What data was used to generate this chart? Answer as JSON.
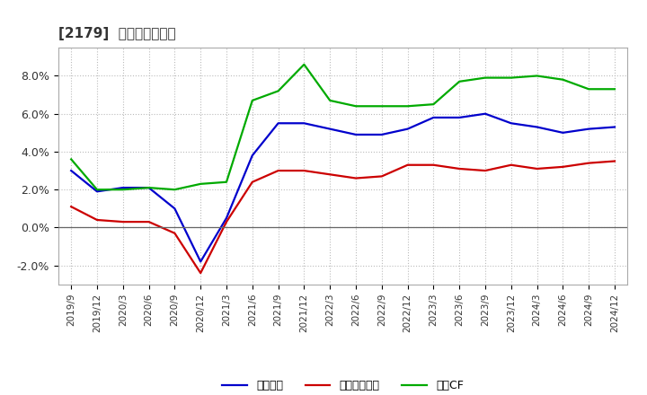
{
  "title": "[2179]  マージンの推移",
  "ylim": [
    -0.03,
    0.095
  ],
  "yticks": [
    -0.02,
    0.0,
    0.02,
    0.04,
    0.06,
    0.08
  ],
  "ytick_labels": [
    "-2.0%",
    "0.0%",
    "2.0%",
    "4.0%",
    "6.0%",
    "8.0%"
  ],
  "x_labels": [
    "2019/9",
    "2019/12",
    "2020/3",
    "2020/6",
    "2020/9",
    "2020/12",
    "2021/3",
    "2021/6",
    "2021/9",
    "2021/12",
    "2022/3",
    "2022/6",
    "2022/9",
    "2022/12",
    "2023/3",
    "2023/6",
    "2023/9",
    "2023/12",
    "2024/3",
    "2024/6",
    "2024/9",
    "2024/12"
  ],
  "keiri_y": [
    0.03,
    0.019,
    0.021,
    0.021,
    0.01,
    -0.018,
    0.005,
    0.038,
    0.055,
    0.055,
    0.052,
    0.049,
    0.049,
    0.052,
    0.058,
    0.058,
    0.06,
    0.055,
    0.053,
    0.05,
    0.052,
    0.053
  ],
  "touki_y": [
    0.011,
    0.004,
    0.003,
    0.003,
    -0.003,
    -0.024,
    0.003,
    0.024,
    0.03,
    0.03,
    0.028,
    0.026,
    0.027,
    0.033,
    0.033,
    0.031,
    0.03,
    0.033,
    0.031,
    0.032,
    0.034,
    0.035
  ],
  "eigyo_y": [
    0.036,
    0.02,
    0.02,
    0.021,
    0.02,
    0.023,
    0.024,
    0.067,
    0.072,
    0.086,
    0.067,
    0.064,
    0.064,
    0.064,
    0.065,
    0.077,
    0.079,
    0.079,
    0.08,
    0.078,
    0.073,
    0.073
  ],
  "keiri_color": "#0000cc",
  "touki_color": "#cc0000",
  "eigyo_color": "#00aa00",
  "legend_labels": [
    "経常利益",
    "当期経常利益",
    "営業CF"
  ],
  "legend_labels2": [
    "経常利益",
    "当期経常利益",
    "営業CF"
  ],
  "bg_color": "#ffffff",
  "plot_bg_color": "#ffffff",
  "grid_color": "#bbbbbb",
  "title_color": "#333333",
  "line_width": 1.6
}
